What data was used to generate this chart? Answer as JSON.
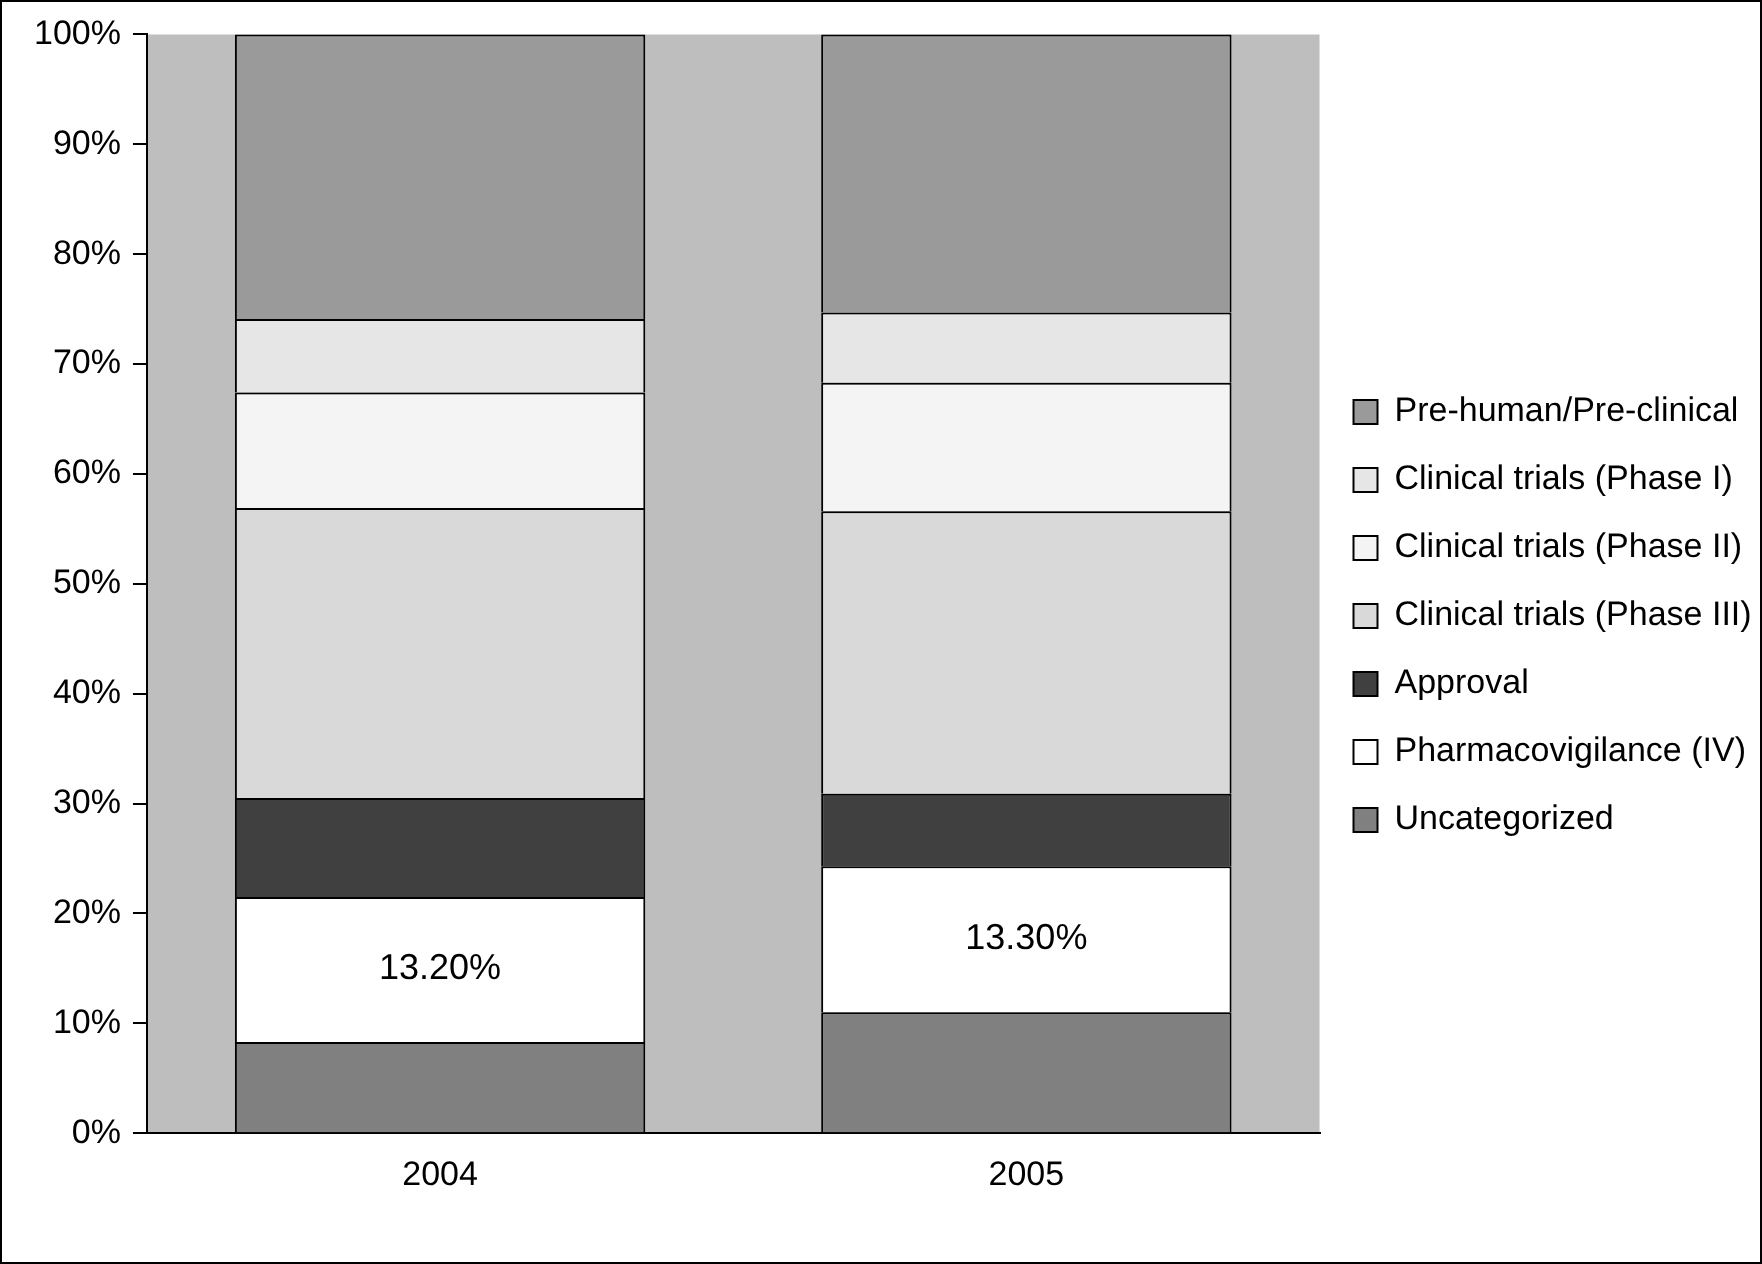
{
  "chart_data": {
    "type": "bar",
    "stacked": true,
    "categories": [
      "2004",
      "2005"
    ],
    "series": [
      {
        "name": "Uncategorized",
        "color": "#808080",
        "values": [
          8.3,
          11.0
        ]
      },
      {
        "name": "Pharmacovigilance (IV)",
        "color": "#ffffff",
        "values": [
          13.2,
          13.3
        ],
        "value_labels": [
          "13.20%",
          "13.30%"
        ]
      },
      {
        "name": "Approval",
        "color": "#404040",
        "values": [
          9.0,
          6.6
        ]
      },
      {
        "name": "Clinical trials (Phase III)",
        "color": "#d9d9d9",
        "values": [
          26.4,
          25.7
        ]
      },
      {
        "name": "Clinical trials (Phase II)",
        "color": "#f4f4f4",
        "values": [
          10.5,
          11.7
        ]
      },
      {
        "name": "Clinical trials (Phase I)",
        "color": "#e6e6e6",
        "values": [
          6.7,
          6.4
        ]
      },
      {
        "name": "Pre-human/Pre-clinical",
        "color": "#9a9a9a",
        "values": [
          25.9,
          25.3
        ]
      }
    ],
    "ylim": [
      0,
      100
    ],
    "yticks": [
      {
        "value": 0,
        "label": "0%"
      },
      {
        "value": 10,
        "label": "10%"
      },
      {
        "value": 20,
        "label": "20%"
      },
      {
        "value": 30,
        "label": "30%"
      },
      {
        "value": 40,
        "label": "40%"
      },
      {
        "value": 50,
        "label": "50%"
      },
      {
        "value": 60,
        "label": "60%"
      },
      {
        "value": 70,
        "label": "70%"
      },
      {
        "value": 80,
        "label": "80%"
      },
      {
        "value": 90,
        "label": "90%"
      },
      {
        "value": 100,
        "label": "100%"
      }
    ],
    "grid": false,
    "legend": "right"
  }
}
